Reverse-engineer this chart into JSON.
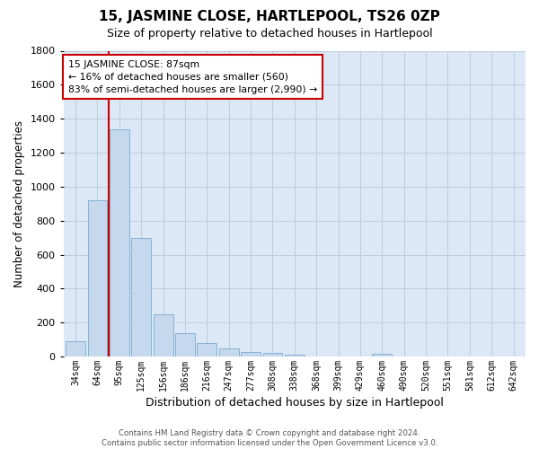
{
  "title": "15, JASMINE CLOSE, HARTLEPOOL, TS26 0ZP",
  "subtitle": "Size of property relative to detached houses in Hartlepool",
  "xlabel": "Distribution of detached houses by size in Hartlepool",
  "ylabel": "Number of detached properties",
  "bar_color": "#c5d8ee",
  "bar_edge_color": "#7aaad0",
  "background_color": "#ffffff",
  "plot_bg_color": "#dce8f5",
  "grid_color": "#b8c8d8",
  "annotation_line_color": "#cc0000",
  "categories": [
    "34sqm",
    "64sqm",
    "95sqm",
    "125sqm",
    "156sqm",
    "186sqm",
    "216sqm",
    "247sqm",
    "277sqm",
    "308sqm",
    "338sqm",
    "368sqm",
    "399sqm",
    "429sqm",
    "460sqm",
    "490sqm",
    "520sqm",
    "551sqm",
    "581sqm",
    "612sqm",
    "642sqm"
  ],
  "values": [
    90,
    920,
    1340,
    700,
    250,
    140,
    80,
    50,
    25,
    20,
    10,
    0,
    0,
    0,
    15,
    0,
    0,
    0,
    0,
    0,
    0
  ],
  "ylim": [
    0,
    1800
  ],
  "yticks": [
    0,
    200,
    400,
    600,
    800,
    1000,
    1200,
    1400,
    1600,
    1800
  ],
  "vline_x_idx": 1.5,
  "vline_label": "15 JASMINE CLOSE: 87sqm",
  "annotation_line1": "← 16% of detached houses are smaller (560)",
  "annotation_line2": "83% of semi-detached houses are larger (2,990) →",
  "footer_line1": "Contains HM Land Registry data © Crown copyright and database right 2024.",
  "footer_line2": "Contains public sector information licensed under the Open Government Licence v3.0."
}
